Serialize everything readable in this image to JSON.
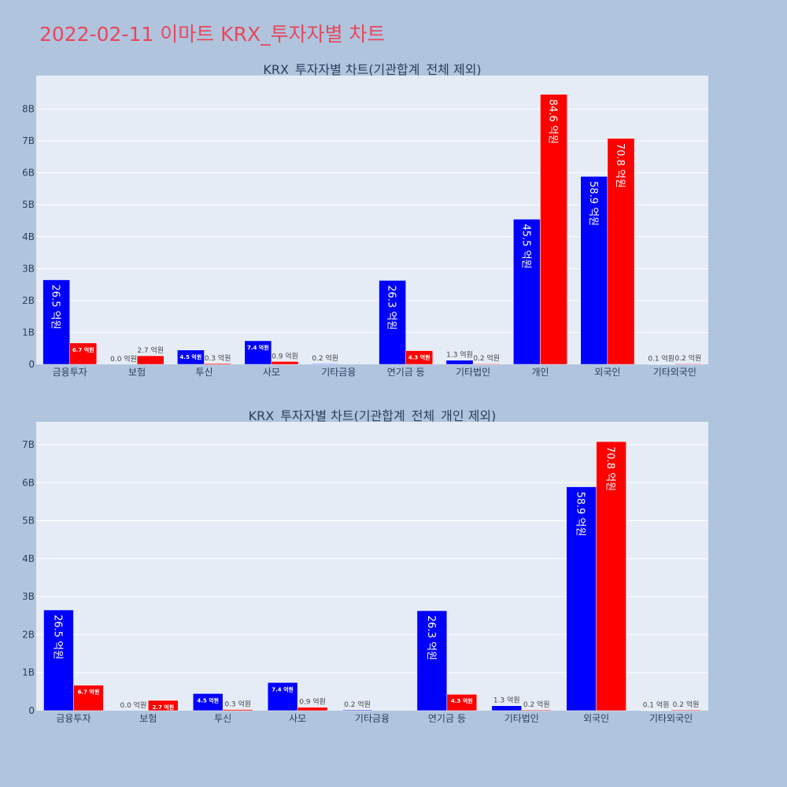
{
  "page": {
    "title": "2022-02-11 이마트 KRX_투자자별 차트"
  },
  "chart_data": [
    {
      "type": "bar",
      "title": "KRX_투자자별 차트(기관합계_전체 제외)",
      "categories": [
        "금융투자",
        "보험",
        "투신",
        "사모",
        "기타금융",
        "연기금 등",
        "기타법인",
        "개인",
        "외국인",
        "기타외국인"
      ],
      "series": [
        {
          "color": "#0000ff",
          "values": [
            2.65,
            0.0,
            0.45,
            0.74,
            0.02,
            2.63,
            0.13,
            4.55,
            5.89,
            0.01
          ],
          "labels": [
            "26.5 억원",
            "0.0 억원",
            "4.5 억원",
            "7.4 억원",
            "0.2 억원",
            "26.3 억원",
            "1.3 억원",
            "45.5 억원",
            "58.9 억원",
            "0.1 억원"
          ]
        },
        {
          "color": "#ff0000",
          "values": [
            0.67,
            0.27,
            0.03,
            0.09,
            0.0,
            0.43,
            0.02,
            8.46,
            7.08,
            0.02
          ],
          "labels": [
            "6.7 억원",
            "2.7 억원",
            "0.3 억원",
            "0.9 억원",
            "",
            "4.3 억원",
            "0.2 억원",
            "84.6 억원",
            "70.8 억원",
            "0.2 억원"
          ]
        }
      ],
      "ylim": [
        0,
        9.05
      ],
      "yticks": [
        "0",
        "1B",
        "2B",
        "3B",
        "4B",
        "5B",
        "6B",
        "7B",
        "8B"
      ],
      "grid": true
    },
    {
      "type": "bar",
      "title": "KRX_투자자별 차트(기관합계_전체_개인 제외)",
      "categories": [
        "금융투자",
        "보험",
        "투신",
        "사모",
        "기타금융",
        "연기금 등",
        "기타법인",
        "외국인",
        "기타외국인"
      ],
      "series": [
        {
          "color": "#0000ff",
          "values": [
            2.65,
            0.0,
            0.45,
            0.74,
            0.02,
            2.63,
            0.13,
            5.89,
            0.01
          ],
          "labels": [
            "26.5 억원",
            "0.0 억원",
            "4.5 억원",
            "7.4 억원",
            "0.2 억원",
            "26.3 억원",
            "1.3 억원",
            "58.9 억원",
            "0.1 억원"
          ]
        },
        {
          "color": "#ff0000",
          "values": [
            0.67,
            0.27,
            0.03,
            0.09,
            0.0,
            0.43,
            0.02,
            7.08,
            0.02
          ],
          "labels": [
            "6.7 억원",
            "2.7 억원",
            "0.3 억원",
            "0.9 억원",
            "",
            "4.3 억원",
            "0.2 억원",
            "70.8 억원",
            "0.2 억원"
          ]
        }
      ],
      "ylim": [
        0,
        7.6
      ],
      "yticks": [
        "0",
        "1B",
        "2B",
        "3B",
        "4B",
        "5B",
        "6B",
        "7B"
      ],
      "grid": true
    }
  ]
}
